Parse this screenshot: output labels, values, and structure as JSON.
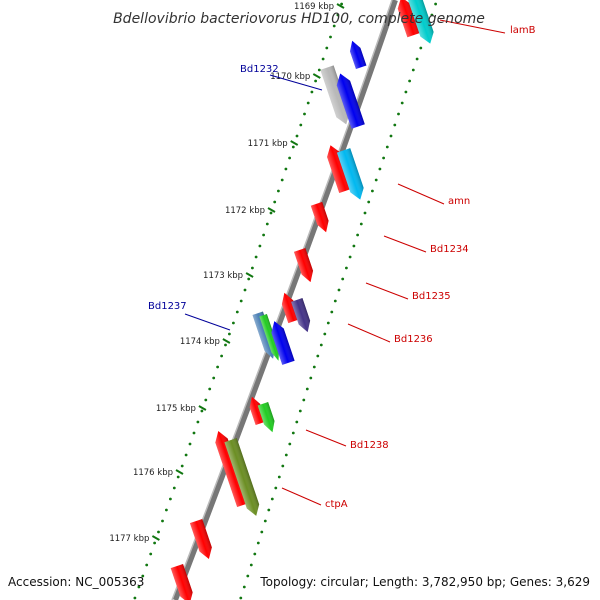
{
  "title": "Bdellovibrio bacteriovorus HD100, complete genome",
  "footer": {
    "accession": "Accession: NC_005363",
    "summary": "Topology: circular; Length: 3,782,950 bp; Genes: 3,629"
  },
  "ticks": [
    "1169 kbp",
    "1170 kbp",
    "1171 kbp",
    "1172 kbp",
    "1173 kbp",
    "1174 kbp",
    "1175 kbp",
    "1176 kbp",
    "1177 kbp"
  ],
  "labels": [
    {
      "id": "lamB",
      "text": "lamB",
      "color": "#cc0000"
    },
    {
      "id": "amn",
      "text": "amn",
      "color": "#cc0000"
    },
    {
      "id": "Bd1234",
      "text": "Bd1234",
      "color": "#cc0000"
    },
    {
      "id": "Bd1235",
      "text": "Bd1235",
      "color": "#cc0000"
    },
    {
      "id": "Bd1236",
      "text": "Bd1236",
      "color": "#cc0000"
    },
    {
      "id": "Bd1238",
      "text": "Bd1238",
      "color": "#cc0000"
    },
    {
      "id": "ctpA",
      "text": "ctpA",
      "color": "#cc0000"
    },
    {
      "id": "Bd1232",
      "text": "Bd1232",
      "color": "#000099"
    },
    {
      "id": "Bd1237",
      "text": "Bd1237",
      "color": "#000099"
    }
  ],
  "colors": {
    "red": "#ff0000",
    "blue": "#0000ee",
    "light-blue": "#00b8f0",
    "cyan": "#00cccc",
    "grey": "#b8b8b8",
    "slate-blue": "#443388",
    "green": "#22cc22",
    "olive": "#6b8e23",
    "steel-blue": "#4a7fb5",
    "backbone": "#777777",
    "tick-green": "#117711"
  }
}
